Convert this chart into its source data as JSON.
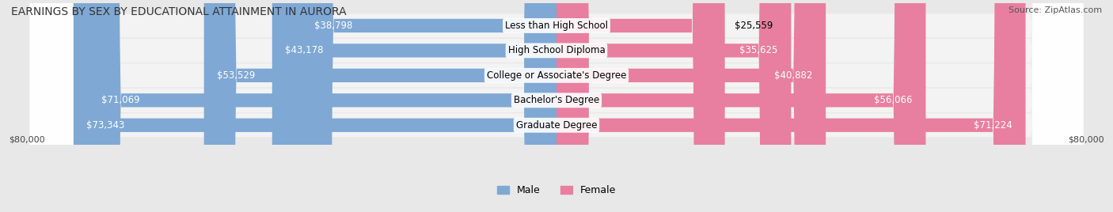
{
  "title": "EARNINGS BY SEX BY EDUCATIONAL ATTAINMENT IN AURORA",
  "source": "Source: ZipAtlas.com",
  "categories": [
    "Less than High School",
    "High School Diploma",
    "College or Associate's Degree",
    "Bachelor's Degree",
    "Graduate Degree"
  ],
  "male_values": [
    38798,
    43178,
    53529,
    71069,
    73343
  ],
  "female_values": [
    25559,
    35625,
    40882,
    56066,
    71224
  ],
  "max_value": 80000,
  "male_color": "#7fa8d4",
  "female_color": "#e87fa0",
  "male_label": "Male",
  "female_label": "Female",
  "background_color": "#e8e8e8",
  "bar_bg_color": "#d8d8d8",
  "title_fontsize": 10,
  "source_fontsize": 8,
  "label_fontsize": 8.5,
  "value_fontsize": 8.5,
  "legend_fontsize": 9,
  "xlabel_fontsize": 8,
  "x_label_left": "$80,000",
  "x_label_right": "$80,000"
}
